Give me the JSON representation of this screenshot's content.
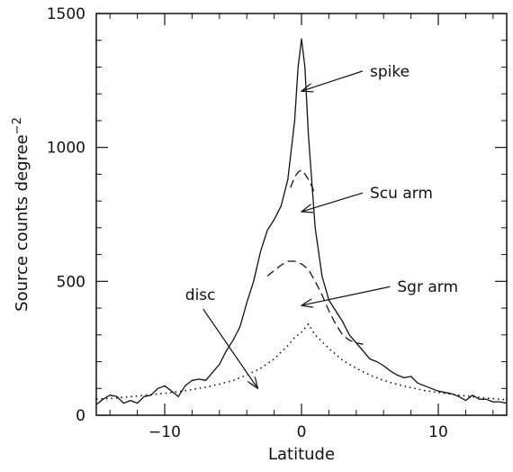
{
  "chart_data": {
    "type": "line",
    "xlabel": "Latitude",
    "ylabel": "Source counts degree",
    "ylabel_superscript": "−2",
    "xlim": [
      -15,
      15
    ],
    "ylim": [
      0,
      1500
    ],
    "x_ticks": [
      {
        "value": -10,
        "label": "−10"
      },
      {
        "value": 0,
        "label": "0"
      },
      {
        "value": 10,
        "label": "10"
      }
    ],
    "y_ticks": [
      {
        "value": 0,
        "label": "0"
      },
      {
        "value": 500,
        "label": "500"
      },
      {
        "value": 1000,
        "label": "1000"
      },
      {
        "value": 1500,
        "label": "1500"
      }
    ],
    "grid": false,
    "series": [
      {
        "style": "solid",
        "x": [
          -15,
          -14.5,
          -14,
          -13.5,
          -13,
          -12.5,
          -12,
          -11.5,
          -11,
          -10.5,
          -10,
          -9.5,
          -9,
          -8.5,
          -8,
          -7.5,
          -7,
          -6.5,
          -6,
          -5.5,
          -5,
          -4.5,
          -4,
          -3.5,
          -3,
          -2.5,
          -2,
          -1.5,
          -1,
          -0.5,
          -0.25,
          0,
          0.25,
          0.5,
          1,
          1.5,
          2,
          2.5,
          3,
          3.5,
          4,
          4.5,
          5,
          5.5,
          6,
          6.5,
          7,
          7.5,
          8,
          8.5,
          9,
          9.5,
          10,
          10.5,
          11,
          11.5,
          12,
          12.5,
          13,
          13.5,
          14,
          14.5,
          15
        ],
        "y": [
          40,
          60,
          75,
          70,
          45,
          55,
          45,
          70,
          75,
          100,
          110,
          90,
          70,
          110,
          130,
          135,
          130,
          160,
          190,
          240,
          280,
          330,
          420,
          500,
          610,
          690,
          730,
          780,
          880,
          1100,
          1300,
          1405,
          1300,
          1050,
          700,
          520,
          430,
          390,
          350,
          300,
          270,
          240,
          210,
          200,
          185,
          165,
          150,
          140,
          145,
          120,
          110,
          100,
          90,
          85,
          80,
          70,
          55,
          75,
          60,
          60,
          50,
          50,
          45
        ]
      },
      {
        "style": "dashed",
        "x": [
          -2.5,
          -2,
          -1.5,
          -1,
          -0.5,
          0,
          0.5,
          1,
          1.5,
          2,
          2.5,
          3,
          3.5,
          4,
          4.5
        ],
        "y": [
          520,
          540,
          560,
          575,
          575,
          565,
          545,
          500,
          450,
          390,
          340,
          300,
          280,
          270,
          265
        ]
      },
      {
        "style": "dashed",
        "x": [
          -0.8,
          -0.5,
          -0.2,
          0,
          0.2,
          0.5,
          0.8,
          1
        ],
        "y": [
          850,
          890,
          910,
          915,
          905,
          880,
          850,
          820
        ]
      },
      {
        "style": "dotted",
        "x": [
          -15,
          -14,
          -13,
          -12,
          -11,
          -10,
          -9,
          -8,
          -7,
          -6,
          -5,
          -4,
          -3,
          -2,
          -1,
          -0.5,
          0,
          0.5,
          1,
          2,
          3,
          4,
          5,
          6,
          7,
          8,
          9,
          10,
          11,
          12,
          13,
          14,
          15
        ],
        "y": [
          60,
          63,
          67,
          72,
          77,
          82,
          88,
          96,
          105,
          116,
          130,
          150,
          175,
          210,
          260,
          290,
          310,
          340,
          300,
          250,
          205,
          175,
          150,
          130,
          115,
          103,
          92,
          85,
          78,
          72,
          67,
          62,
          58
        ]
      }
    ],
    "annotations": [
      {
        "label": "spike",
        "text_at": [
          5,
          1265
        ],
        "arrow_to": [
          0,
          1210
        ]
      },
      {
        "label": "Scu arm",
        "text_at": [
          5,
          810
        ],
        "arrow_to": [
          0,
          760
        ]
      },
      {
        "label": "Sgr arm",
        "text_at": [
          7,
          460
        ],
        "arrow_to": [
          0,
          410
        ]
      },
      {
        "label": "disc",
        "text_at": [
          -8.5,
          430
        ],
        "arrow_to": [
          -3.2,
          100
        ]
      }
    ]
  }
}
